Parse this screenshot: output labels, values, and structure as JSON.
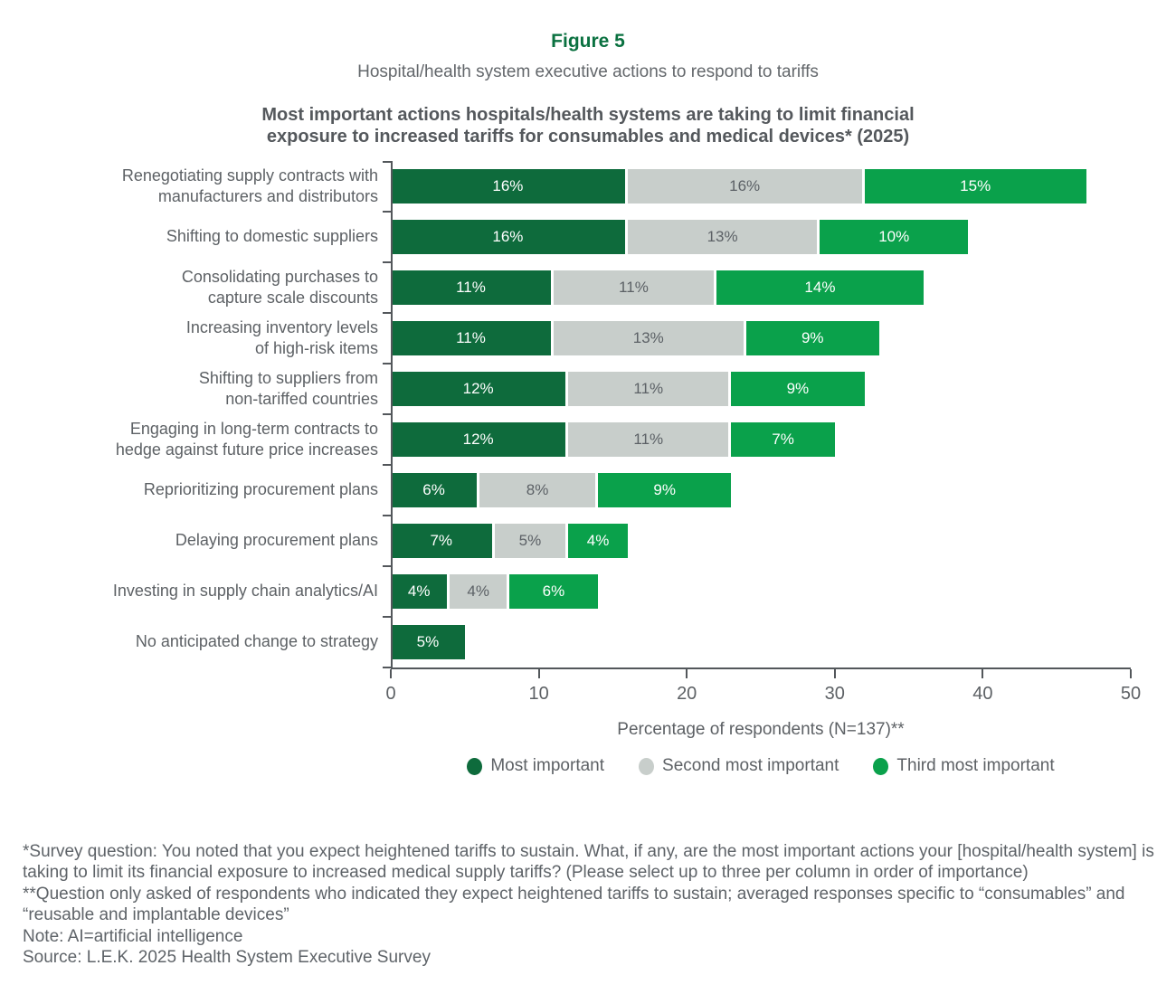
{
  "header": {
    "figure_label": "Figure 5",
    "figure_subtitle": "Hospital/health system executive actions to respond to tariffs",
    "chart_heading": "Most important actions hospitals/health systems are taking to limit financial\nexposure to increased tariffs for consumables and medical devices* (2025)"
  },
  "chart_data": {
    "type": "bar",
    "orientation": "horizontal-stacked",
    "title": "Most important actions hospitals/health systems are taking to limit financial exposure to increased tariffs for consumables and medical devices* (2025)",
    "xlabel": "Percentage of respondents (N=137)**",
    "xlim": [
      0,
      50
    ],
    "x_ticks": [
      0,
      10,
      20,
      30,
      40,
      50
    ],
    "grid": false,
    "legend_position": "bottom",
    "value_suffix": "%",
    "categories": [
      {
        "label": "Renegotiating supply contracts with manufacturers and distributors",
        "lines": [
          "Renegotiating supply contracts with",
          "manufacturers and distributors"
        ]
      },
      {
        "label": "Shifting to domestic suppliers",
        "lines": [
          "Shifting to domestic suppliers"
        ]
      },
      {
        "label": "Consolidating purchases to capture scale discounts",
        "lines": [
          "Consolidating purchases to",
          "capture scale discounts"
        ]
      },
      {
        "label": "Increasing inventory levels of high-risk items",
        "lines": [
          "Increasing inventory levels",
          "of high-risk items"
        ]
      },
      {
        "label": "Shifting to suppliers from non-tariffed countries",
        "lines": [
          "Shifting to suppliers from",
          "non-tariffed countries"
        ]
      },
      {
        "label": "Engaging in long-term contracts to hedge against future price increases",
        "lines": [
          "Engaging in long-term contracts to",
          "hedge against future price increases"
        ]
      },
      {
        "label": "Reprioritizing procurement plans",
        "lines": [
          "Reprioritizing procurement plans"
        ]
      },
      {
        "label": "Delaying procurement plans",
        "lines": [
          "Delaying procurement plans"
        ]
      },
      {
        "label": "Investing in supply chain analytics/AI",
        "lines": [
          "Investing in supply chain analytics/AI"
        ]
      },
      {
        "label": "No anticipated change to strategy",
        "lines": [
          "No anticipated change to strategy"
        ]
      }
    ],
    "series": [
      {
        "name": "Most important",
        "fill": "#0E6B3C",
        "text_color": "#FFFFFF",
        "values": [
          16,
          16,
          11,
          11,
          12,
          12,
          6,
          7,
          4,
          5
        ]
      },
      {
        "name": "Second most important",
        "fill": "#C8CECB",
        "text_color": "#5C6166",
        "values": [
          16,
          13,
          11,
          13,
          11,
          11,
          8,
          5,
          4,
          0
        ]
      },
      {
        "name": "Third most important",
        "fill": "#0AA14B",
        "text_color": "#FFFFFF",
        "values": [
          15,
          10,
          14,
          9,
          9,
          7,
          9,
          4,
          6,
          0
        ]
      }
    ]
  },
  "footnotes": [
    "*Survey question: You noted that you expect heightened tariffs to sustain. What, if any, are the most important actions your [hospital/health system] is taking to limit its financial exposure to increased medical supply tariffs? (Please select up to three per column in order of importance)",
    "**Question only asked of respondents who indicated they expect heightened tariffs to sustain; averaged responses specific to “consumables” and “reusable and implantable devices”",
    "Note: AI=artificial intelligence",
    "Source: L.E.K. 2025 Health System Executive Survey"
  ],
  "colors": {
    "figure_label_green": "#0A7140",
    "heading_gray": "#54585C",
    "label_gray": "#5D6165",
    "axis_gray": "#53575B"
  }
}
